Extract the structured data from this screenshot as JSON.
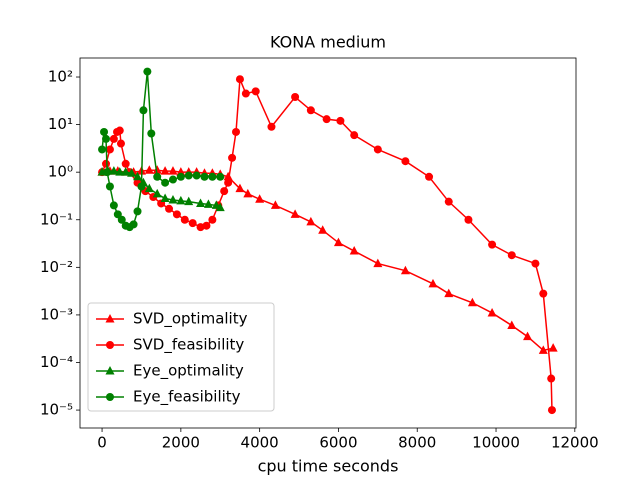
{
  "chart_data": {
    "type": "line",
    "title": "KONA medium",
    "x_label": "cpu time seconds",
    "log_y": true,
    "legend": "lower left",
    "xlim": [
      -560,
      12030
    ],
    "xticks": [
      0,
      2000,
      4000,
      6000,
      8000,
      10000,
      12000
    ],
    "ylim": [
      4.2e-06,
      251
    ],
    "yticks": [
      {
        "value": 1e-05,
        "label": "10⁻⁵"
      },
      {
        "value": 0.0001,
        "label": "10⁻⁴"
      },
      {
        "value": 0.001,
        "label": "10⁻³"
      },
      {
        "value": 0.01,
        "label": "10⁻²"
      },
      {
        "value": 0.1,
        "label": "10⁻¹"
      },
      {
        "value": 1,
        "label": "10⁰"
      },
      {
        "value": 10,
        "label": "10¹"
      },
      {
        "value": 100,
        "label": "10²"
      }
    ],
    "series": [
      {
        "name": "SVD_optimality",
        "color": "#ff0000",
        "marker": "triangle",
        "x": [
          0,
          200,
          400,
          600,
          800,
          1000,
          1200,
          1400,
          1600,
          1800,
          2000,
          2200,
          2400,
          2600,
          2800,
          3000,
          3200,
          3500,
          3700,
          4000,
          4400,
          4900,
          5300,
          5600,
          6000,
          6400,
          7000,
          7700,
          8400,
          8800,
          9400,
          9900,
          10400,
          10800,
          11200,
          11450
        ],
        "values": [
          1,
          1.05,
          1.05,
          1,
          1,
          1.05,
          1.1,
          1.1,
          1.05,
          1.05,
          1,
          1,
          1,
          0.95,
          0.95,
          0.9,
          0.8,
          0.45,
          0.35,
          0.27,
          0.2,
          0.13,
          0.09,
          0.06,
          0.033,
          0.022,
          0.012,
          0.0085,
          0.0045,
          0.0028,
          0.0018,
          0.0011,
          0.0006,
          0.00035,
          0.00018,
          0.0002
        ]
      },
      {
        "name": "SVD_feasibility",
        "color": "#ff0000",
        "marker": "circle",
        "x": [
          0,
          100,
          200,
          300,
          380,
          450,
          480,
          600,
          700,
          900,
          1100,
          1300,
          1500,
          1700,
          1900,
          2100,
          2300,
          2500,
          2650,
          2800,
          2950,
          3100,
          3200,
          3300,
          3400,
          3500,
          3650,
          3900,
          4300,
          4900,
          5300,
          5700,
          6050,
          6400,
          7000,
          7700,
          8300,
          8800,
          9300,
          9900,
          10400,
          11000,
          11200,
          11400,
          11420
        ],
        "values": [
          1,
          1.5,
          3,
          5,
          7,
          7.5,
          4,
          1.5,
          1,
          0.6,
          0.4,
          0.3,
          0.22,
          0.17,
          0.13,
          0.1,
          0.085,
          0.07,
          0.075,
          0.1,
          0.2,
          0.4,
          0.6,
          2,
          7,
          90,
          45,
          50,
          9,
          38,
          20,
          13,
          12,
          6,
          3,
          1.7,
          0.8,
          0.24,
          0.1,
          0.03,
          0.018,
          0.012,
          0.0028,
          4.6e-05,
          1e-05
        ]
      },
      {
        "name": "Eye_optimality",
        "color": "#008000",
        "marker": "triangle",
        "x": [
          0,
          150,
          300,
          450,
          600,
          750,
          900,
          1050,
          1200,
          1400,
          1600,
          1800,
          2000,
          2200,
          2500,
          2700,
          2900,
          3000
        ],
        "values": [
          1,
          1.05,
          1.05,
          1,
          1,
          0.95,
          0.8,
          0.6,
          0.45,
          0.35,
          0.28,
          0.26,
          0.25,
          0.24,
          0.22,
          0.21,
          0.2,
          0.18
        ]
      },
      {
        "name": "Eye_feasibility",
        "color": "#008000",
        "marker": "circle",
        "x": [
          0,
          50,
          100,
          130,
          200,
          300,
          400,
          500,
          600,
          700,
          800,
          900,
          1000,
          1050,
          1150,
          1250,
          1400,
          1600,
          1800,
          2000,
          2200,
          2400,
          2600,
          2800,
          3000
        ],
        "values": [
          3,
          7,
          5,
          1,
          0.5,
          0.2,
          0.13,
          0.1,
          0.075,
          0.07,
          0.08,
          0.15,
          0.5,
          20,
          130,
          6.5,
          0.8,
          0.6,
          0.7,
          0.8,
          0.85,
          0.85,
          0.8,
          0.8,
          0.8
        ]
      }
    ]
  }
}
